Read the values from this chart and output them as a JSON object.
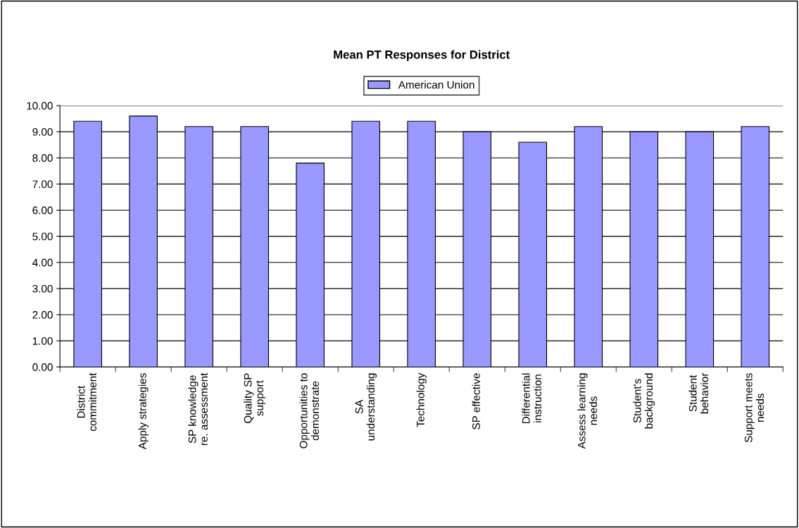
{
  "chart_data": {
    "type": "bar",
    "title": "Mean PT Responses for District",
    "categories": [
      "District\ncommitment",
      "Apply strategies",
      "SP knowledge\nre. assessment",
      "Quality SP\nsupport",
      "Opportunities to\ndemonstrate",
      "SA\nunderstanding",
      "Technology",
      "SP effective",
      "Differential\ninstruction",
      "Assess learning\nneeds",
      "Student's\nbackground",
      "Student\nbehavior",
      "Support meets\nneeds"
    ],
    "series": [
      {
        "name": "American Union",
        "color": "#9999ff",
        "values": [
          9.4,
          9.6,
          9.2,
          9.2,
          7.8,
          9.4,
          9.4,
          9.0,
          8.6,
          9.2,
          9.0,
          9.0,
          9.2
        ]
      }
    ],
    "ylim": [
      0,
      10
    ],
    "yticks": [
      {
        "value": 0,
        "label": "0.00"
      },
      {
        "value": 1,
        "label": "1.00"
      },
      {
        "value": 2,
        "label": "2.00"
      },
      {
        "value": 3,
        "label": "3.00"
      },
      {
        "value": 4,
        "label": "4.00"
      },
      {
        "value": 5,
        "label": "5.00"
      },
      {
        "value": 6,
        "label": "6.00"
      },
      {
        "value": 7,
        "label": "7.00"
      },
      {
        "value": 8,
        "label": "8.00"
      },
      {
        "value": 9,
        "label": "9.00"
      },
      {
        "value": 10,
        "label": "10.00"
      }
    ],
    "grid": "y",
    "legend": "top"
  }
}
